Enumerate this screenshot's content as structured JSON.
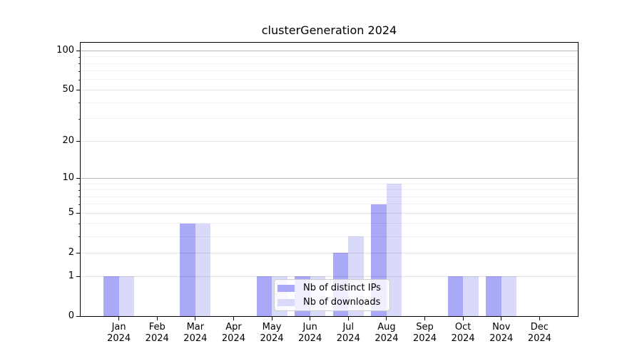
{
  "chart_data": {
    "type": "bar",
    "title": "clusterGeneration 2024",
    "categories": [
      "Jan",
      "Feb",
      "Mar",
      "Apr",
      "May",
      "Jun",
      "Jul",
      "Aug",
      "Sep",
      "Oct",
      "Nov",
      "Dec"
    ],
    "category_year": "2024",
    "series": [
      {
        "name": "Nb of distinct IPs",
        "color": "#a9a9f7",
        "values": [
          1,
          0,
          4,
          0,
          1,
          1,
          2,
          6,
          0,
          1,
          1,
          0
        ]
      },
      {
        "name": "Nb of downloads",
        "color": "#d9d9fa",
        "values": [
          1,
          0,
          4,
          0,
          1,
          1,
          3,
          9,
          0,
          1,
          1,
          0
        ]
      }
    ],
    "y_axis": {
      "scale": "log1p",
      "major_ticks": [
        0,
        1,
        2,
        5,
        10,
        20,
        50,
        100
      ],
      "minor_ticks": [
        3,
        4,
        6,
        7,
        8,
        9,
        30,
        40,
        60,
        70,
        80,
        90
      ],
      "emphasized_ticks": [
        10,
        100
      ],
      "ylim": [
        0,
        115
      ]
    },
    "xlabel": "",
    "ylabel": "",
    "grid": true,
    "legend": {
      "position": "lower center",
      "entries": [
        "Nb of distinct IPs",
        "Nb of downloads"
      ]
    }
  }
}
